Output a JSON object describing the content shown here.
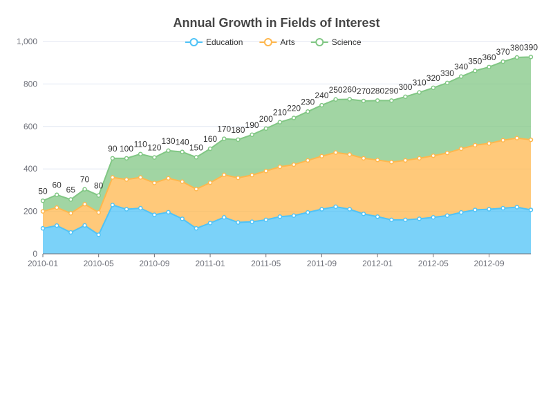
{
  "chart_data": {
    "type": "area",
    "stacked": true,
    "title": "Annual Growth in Fields of Interest",
    "xlabel": "",
    "ylabel": "",
    "ylim": [
      0,
      1000
    ],
    "yticks": [
      "0",
      "200",
      "400",
      "600",
      "800",
      "1,000"
    ],
    "x": [
      "2010-01",
      "2010-02",
      "2010-03",
      "2010-04",
      "2010-05",
      "2010-06",
      "2010-07",
      "2010-08",
      "2010-09",
      "2010-10",
      "2010-11",
      "2010-12",
      "2011-01",
      "2011-02",
      "2011-03",
      "2011-04",
      "2011-05",
      "2011-06",
      "2011-07",
      "2011-08",
      "2011-09",
      "2011-10",
      "2011-11",
      "2011-12",
      "2012-01",
      "2012-02",
      "2012-03",
      "2012-04",
      "2012-05",
      "2012-06",
      "2012-07",
      "2012-08",
      "2012-09",
      "2012-10",
      "2012-11",
      "2012-12"
    ],
    "x_tick_labels": [
      "2010-01",
      "2010-05",
      "2010-09",
      "2011-01",
      "2011-05",
      "2011-09",
      "2012-01",
      "2012-05",
      "2012-09"
    ],
    "grid": true,
    "legend_position": "top-center",
    "series": [
      {
        "name": "Education",
        "color": "#4fc3f7",
        "values": [
          120,
          133,
          101,
          134,
          90,
          230,
          210,
          215,
          184,
          196,
          165,
          120,
          145,
          172,
          148,
          151,
          160,
          175,
          180,
          195,
          210,
          222,
          210,
          188,
          175,
          160,
          160,
          165,
          172,
          180,
          195,
          207,
          210,
          215,
          220,
          207
        ]
      },
      {
        "name": "Arts",
        "color": "#ffb74d",
        "values": [
          80,
          85,
          90,
          100,
          105,
          130,
          140,
          145,
          150,
          160,
          175,
          185,
          190,
          200,
          210,
          220,
          230,
          235,
          240,
          245,
          250,
          255,
          258,
          262,
          267,
          272,
          280,
          285,
          290,
          295,
          300,
          305,
          310,
          320,
          325,
          330
        ]
      },
      {
        "name": "Science",
        "color": "#81c784",
        "values": [
          50,
          60,
          65,
          70,
          80,
          90,
          100,
          110,
          120,
          130,
          140,
          150,
          160,
          170,
          180,
          190,
          200,
          210,
          220,
          230,
          240,
          250,
          260,
          270,
          280,
          290,
          300,
          310,
          320,
          330,
          340,
          350,
          360,
          370,
          380,
          390
        ]
      }
    ],
    "data_labels": [
      "50",
      "60",
      "65",
      "70",
      "80",
      "90",
      "100",
      "110",
      "120",
      "130",
      "140",
      "150",
      "160",
      "170",
      "180",
      "190",
      "200",
      "210",
      "220",
      "230",
      "240",
      "250",
      "260",
      "270",
      "280",
      "290",
      "300",
      "310",
      "320",
      "330",
      "340",
      "350",
      "360",
      "370",
      "380",
      "390"
    ]
  }
}
